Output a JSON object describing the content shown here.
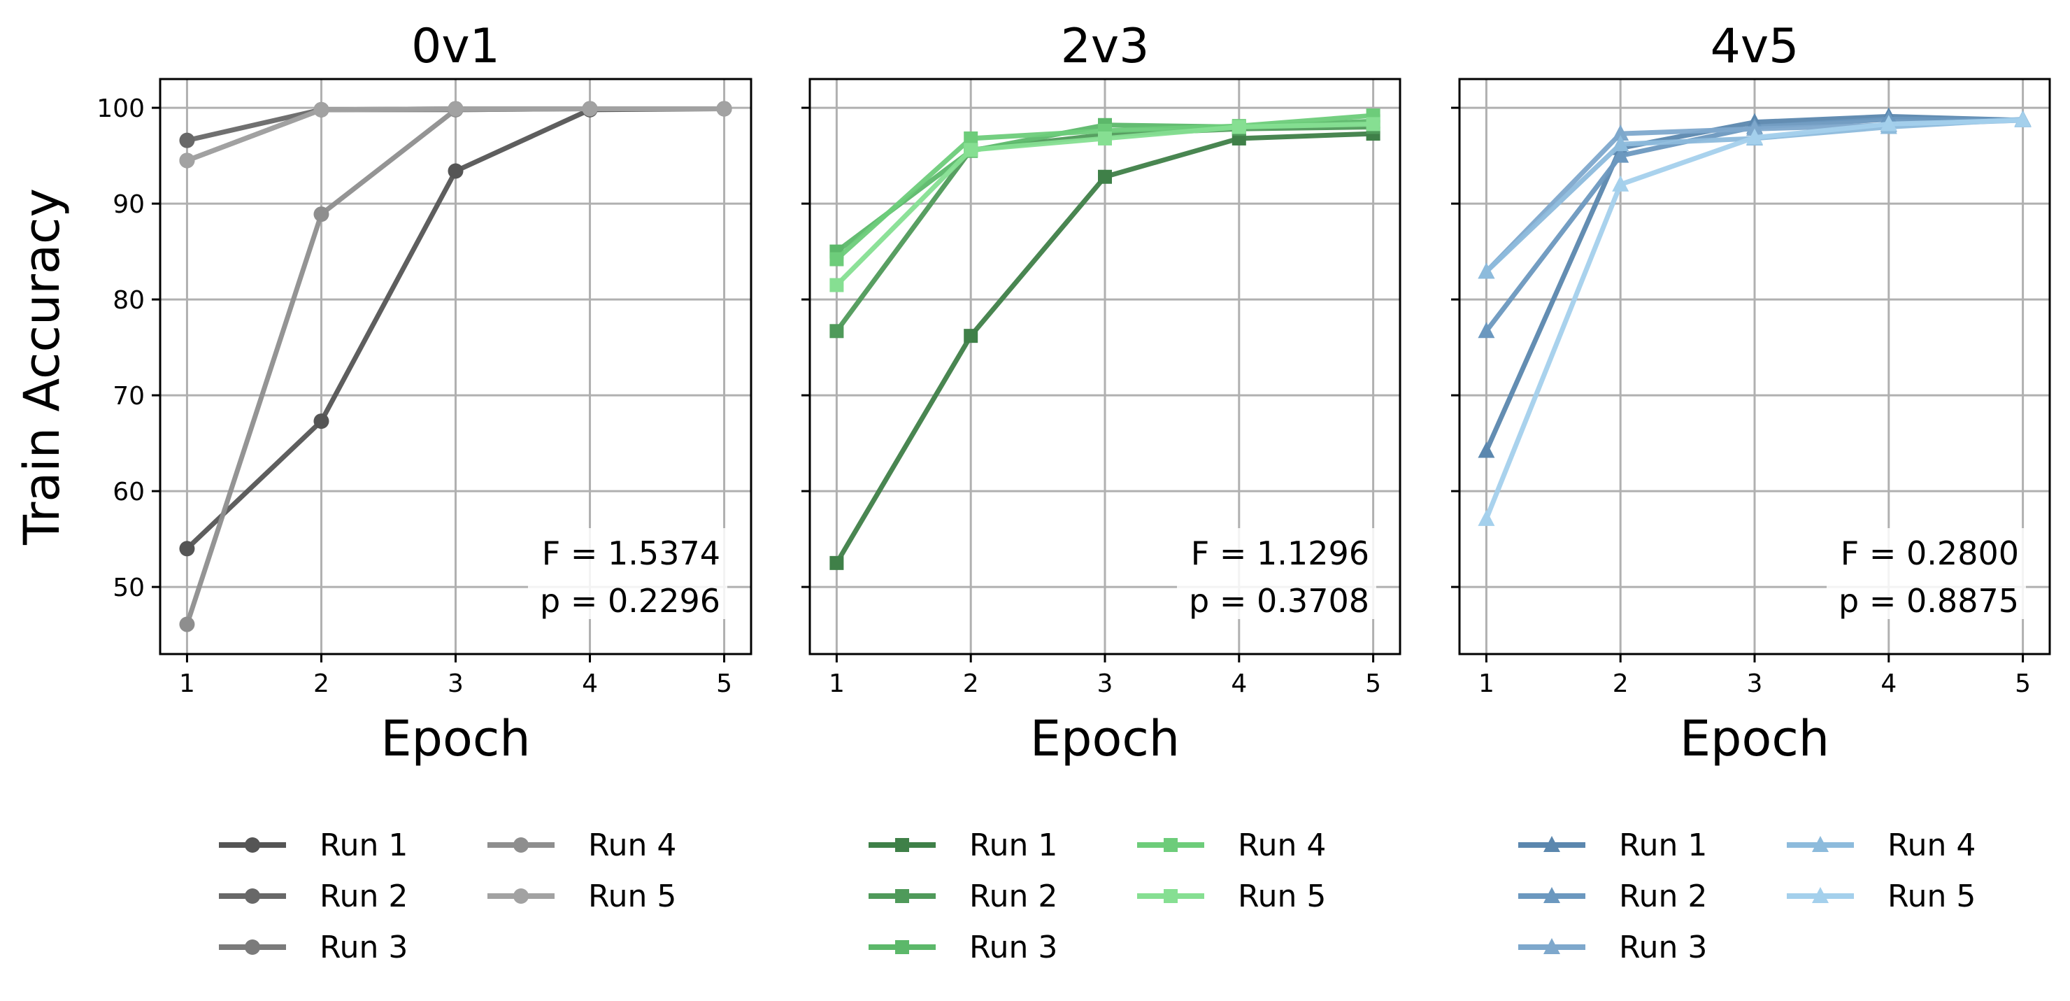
{
  "chart_data": [
    {
      "type": "line",
      "title": "0v1",
      "xlabel": "Epoch",
      "ylabel": "Train Accuracy",
      "x": [
        1,
        2,
        3,
        4,
        5
      ],
      "ylim": [
        43,
        103
      ],
      "yticks": [
        50,
        60,
        70,
        80,
        90,
        100
      ],
      "grid": true,
      "marker": "circle",
      "annotation": [
        "F = 1.5374",
        "p = 0.2296"
      ],
      "legend_position": "below",
      "series": [
        {
          "name": "Run 1",
          "color": "#555555",
          "values": [
            54.0,
            67.3,
            93.4,
            99.8,
            99.9
          ]
        },
        {
          "name": "Run 2",
          "color": "#686868",
          "values": [
            96.6,
            99.8,
            99.9,
            99.9,
            99.9
          ]
        },
        {
          "name": "Run 3",
          "color": "#7b7b7b",
          "values": [
            94.5,
            99.8,
            99.8,
            99.9,
            99.9
          ]
        },
        {
          "name": "Run 4",
          "color": "#8e8e8e",
          "values": [
            46.1,
            88.9,
            99.8,
            99.9,
            99.9
          ]
        },
        {
          "name": "Run 5",
          "color": "#a2a2a2",
          "values": [
            94.5,
            99.8,
            99.9,
            99.9,
            99.9
          ]
        }
      ]
    },
    {
      "type": "line",
      "title": "2v3",
      "xlabel": "Epoch",
      "x": [
        1,
        2,
        3,
        4,
        5
      ],
      "ylim": [
        43,
        103
      ],
      "yticks": [
        50,
        60,
        70,
        80,
        90,
        100
      ],
      "grid": true,
      "marker": "square",
      "annotation": [
        "F = 1.1296",
        "p = 0.3708"
      ],
      "legend_position": "below",
      "series": [
        {
          "name": "Run 1",
          "color": "#3f8048",
          "values": [
            52.5,
            76.2,
            92.8,
            96.8,
            97.3
          ]
        },
        {
          "name": "Run 2",
          "color": "#4f9a5a",
          "values": [
            76.7,
            95.6,
            97.2,
            97.8,
            98.0
          ]
        },
        {
          "name": "Run 3",
          "color": "#5cb86a",
          "values": [
            85.0,
            95.5,
            98.2,
            98.0,
            98.6
          ]
        },
        {
          "name": "Run 4",
          "color": "#6dcc7a",
          "values": [
            84.2,
            96.8,
            97.6,
            98.1,
            99.2
          ]
        },
        {
          "name": "Run 5",
          "color": "#86df92",
          "values": [
            81.5,
            95.6,
            96.8,
            98.0,
            98.3
          ]
        }
      ]
    },
    {
      "type": "line",
      "title": "4v5",
      "xlabel": "Epoch",
      "x": [
        1,
        2,
        3,
        4,
        5
      ],
      "ylim": [
        43,
        103
      ],
      "yticks": [
        50,
        60,
        70,
        80,
        90,
        100
      ],
      "grid": true,
      "marker": "triangle",
      "annotation": [
        "F = 0.2800",
        "p = 0.8875"
      ],
      "legend_position": "below",
      "series": [
        {
          "name": "Run 1",
          "color": "#5b87ae",
          "values": [
            64.2,
            95.8,
            98.5,
            99.1,
            98.7
          ]
        },
        {
          "name": "Run 2",
          "color": "#6b98bf",
          "values": [
            76.7,
            95.0,
            98.0,
            98.8,
            98.7
          ]
        },
        {
          "name": "Run 3",
          "color": "#7ea8cc",
          "values": [
            82.9,
            97.3,
            97.8,
            98.2,
            98.7
          ]
        },
        {
          "name": "Run 4",
          "color": "#8dbbdc",
          "values": [
            82.9,
            96.2,
            96.8,
            98.0,
            98.8
          ]
        },
        {
          "name": "Run 5",
          "color": "#a4d0ec",
          "values": [
            57.1,
            92.0,
            96.9,
            98.3,
            98.7
          ]
        }
      ]
    }
  ]
}
